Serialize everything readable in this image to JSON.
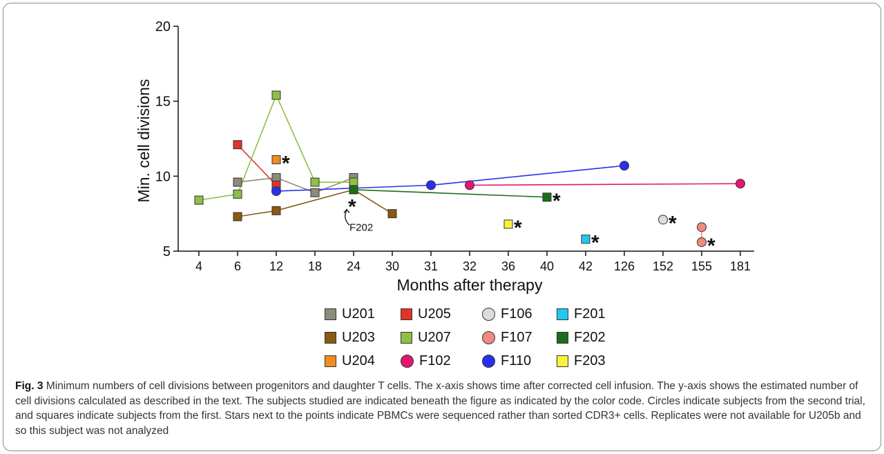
{
  "chart_data": {
    "type": "scatter",
    "xlabel": "Months after therapy",
    "ylabel": "Min. cell divisions",
    "x_categories": [
      "4",
      "6",
      "12",
      "18",
      "24",
      "30",
      "31",
      "32",
      "36",
      "40",
      "42",
      "126",
      "152",
      "155",
      "181"
    ],
    "y_ticks": [
      5,
      10,
      15,
      20
    ],
    "ylim": [
      5,
      20
    ],
    "series": [
      {
        "name": "U201",
        "marker": "square",
        "color": "#8c8c7a",
        "connected": true,
        "points": [
          {
            "x": "6",
            "y": 9.6
          },
          {
            "x": "12",
            "y": 9.9
          },
          {
            "x": "18",
            "y": 8.9
          },
          {
            "x": "24",
            "y": 9.9
          }
        ]
      },
      {
        "name": "U205",
        "marker": "square",
        "color": "#e0342a",
        "connected": true,
        "points": [
          {
            "x": "6",
            "y": 12.1
          },
          {
            "x": "12",
            "y": 9.4
          }
        ]
      },
      {
        "name": "F106",
        "marker": "circle",
        "color": "#dcdcdc",
        "connected": false,
        "star": true,
        "points": [
          {
            "x": "152",
            "y": 7.1
          }
        ]
      },
      {
        "name": "F201",
        "marker": "square",
        "color": "#22c9ee",
        "connected": false,
        "star": true,
        "points": [
          {
            "x": "42",
            "y": 5.8
          }
        ]
      },
      {
        "name": "U203",
        "marker": "square",
        "color": "#8a5a10",
        "connected": true,
        "points": [
          {
            "x": "6",
            "y": 7.3
          },
          {
            "x": "12",
            "y": 7.7
          },
          {
            "x": "24",
            "y": 9.1
          },
          {
            "x": "30",
            "y": 7.5
          }
        ]
      },
      {
        "name": "U207",
        "marker": "square",
        "color": "#8dc046",
        "connected": true,
        "points": [
          {
            "x": "4",
            "y": 8.4
          },
          {
            "x": "6",
            "y": 8.8
          },
          {
            "x": "12",
            "y": 15.4
          },
          {
            "x": "18",
            "y": 9.6
          },
          {
            "x": "24",
            "y": 9.6
          }
        ]
      },
      {
        "name": "F107",
        "marker": "circle",
        "color": "#f08a80",
        "connected": true,
        "star": true,
        "points": [
          {
            "x": "155",
            "y": 6.6
          },
          {
            "x": "155",
            "y": 5.6
          }
        ]
      },
      {
        "name": "F202",
        "marker": "square",
        "color": "#1a6e1a",
        "connected": true,
        "star": true,
        "points": [
          {
            "x": "24",
            "y": 9.1
          },
          {
            "x": "40",
            "y": 8.6
          }
        ]
      },
      {
        "name": "U204",
        "marker": "square",
        "color": "#f28c1e",
        "connected": false,
        "star": true,
        "points": [
          {
            "x": "12",
            "y": 11.1
          }
        ]
      },
      {
        "name": "F102",
        "marker": "circle",
        "color": "#e3156f",
        "connected": true,
        "points": [
          {
            "x": "32",
            "y": 9.4
          },
          {
            "x": "181",
            "y": 9.5
          }
        ]
      },
      {
        "name": "F110",
        "marker": "circle",
        "color": "#2a2ef0",
        "connected": true,
        "points": [
          {
            "x": "12",
            "y": 9.0
          },
          {
            "x": "31",
            "y": 9.4
          },
          {
            "x": "126",
            "y": 10.7
          }
        ]
      },
      {
        "name": "F203",
        "marker": "square",
        "color": "#f8f23a",
        "connected": false,
        "star": true,
        "points": [
          {
            "x": "36",
            "y": 6.8
          }
        ]
      }
    ],
    "annotations": [
      {
        "text": "*",
        "x": "24",
        "y": 8.2
      },
      {
        "text": "F202",
        "x": "24",
        "y": 7.0,
        "arrow": true
      }
    ]
  },
  "legend": {
    "items": [
      {
        "name": "U201",
        "marker": "square",
        "color": "#8c8c7a"
      },
      {
        "name": "U205",
        "marker": "square",
        "color": "#e0342a"
      },
      {
        "name": "F106",
        "marker": "circle",
        "color": "#dcdcdc"
      },
      {
        "name": "F201",
        "marker": "square",
        "color": "#22c9ee"
      },
      {
        "name": "U203",
        "marker": "square",
        "color": "#8a5a10"
      },
      {
        "name": "U207",
        "marker": "square",
        "color": "#8dc046"
      },
      {
        "name": "F107",
        "marker": "circle",
        "color": "#f08a80"
      },
      {
        "name": "F202",
        "marker": "square",
        "color": "#1a6e1a"
      },
      {
        "name": "U204",
        "marker": "square",
        "color": "#f28c1e"
      },
      {
        "name": "F102",
        "marker": "circle",
        "color": "#e3156f"
      },
      {
        "name": "F110",
        "marker": "circle",
        "color": "#2a2ef0"
      },
      {
        "name": "F203",
        "marker": "square",
        "color": "#f8f23a"
      }
    ]
  },
  "caption": {
    "label": "Fig. 3",
    "text": " Minimum numbers of cell divisions between progenitors and daughter T cells. The x-axis shows time after corrected cell infusion. The y-axis shows the estimated number of cell divisions calculated as described in the text. The subjects studied are indicated beneath the figure as indicated by the color code. Circles indicate subjects from the second trial, and squares indicate subjects from the first. Stars next to the points indicate PBMCs were sequenced rather than sorted CDR3+ cells. Replicates were not available for U205b and so this subject was not analyzed"
  }
}
